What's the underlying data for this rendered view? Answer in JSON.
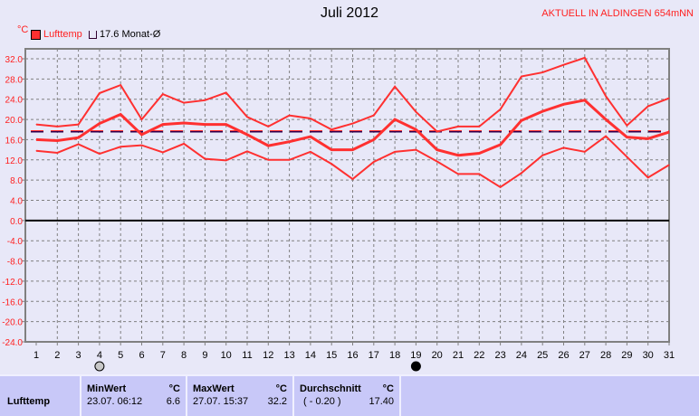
{
  "chart_data": {
    "type": "line",
    "title": "Juli 2012",
    "ylabel": "°C",
    "ylim": [
      -24,
      32
    ],
    "yticks": [
      "32.0",
      "28.0",
      "24.0",
      "20.0",
      "16.0",
      "12.0",
      "8.0",
      "4.0",
      "0.0",
      "-4.0",
      "-8.0",
      "-12.0",
      "-16.0",
      "-20.0",
      "-24.0"
    ],
    "x": [
      1,
      2,
      3,
      4,
      5,
      6,
      7,
      8,
      9,
      10,
      11,
      12,
      13,
      14,
      15,
      16,
      17,
      18,
      19,
      20,
      21,
      22,
      23,
      24,
      25,
      26,
      27,
      28,
      29,
      30,
      31
    ],
    "grid": true,
    "series": [
      {
        "name": "Lufttemp",
        "color": "#ff3030",
        "values": [
          16.0,
          15.8,
          16.4,
          19.2,
          21.0,
          17.0,
          19.0,
          19.3,
          19.0,
          19.0,
          17.0,
          14.8,
          15.6,
          16.6,
          14.0,
          14.0,
          16.0,
          20.0,
          18.0,
          14.0,
          12.9,
          13.3,
          15.0,
          19.8,
          21.6,
          23.0,
          23.8,
          20.0,
          16.5,
          16.2,
          17.5
        ]
      },
      {
        "color": "#ff3030",
        "values": [
          19.0,
          18.6,
          19.0,
          25.2,
          26.8,
          20.0,
          25.0,
          23.3,
          23.8,
          25.3,
          20.5,
          18.6,
          20.8,
          20.2,
          18.0,
          19.2,
          20.8,
          26.5,
          21.5,
          17.6,
          18.6,
          18.6,
          22.0,
          28.5,
          29.3,
          30.8,
          32.2,
          24.6,
          18.8,
          22.6,
          24.2
        ]
      },
      {
        "color": "#ff3030",
        "values": [
          13.8,
          13.4,
          15.1,
          13.2,
          14.6,
          14.9,
          13.5,
          15.2,
          12.2,
          11.9,
          13.7,
          12.0,
          12.0,
          13.6,
          11.2,
          8.2,
          11.6,
          13.6,
          14.0,
          11.7,
          9.2,
          9.2,
          6.6,
          9.4,
          12.9,
          14.4,
          13.6,
          16.7,
          12.6,
          8.5,
          11.0
        ]
      }
    ],
    "reference": {
      "label": "17.6 Monat-Ø",
      "value": 17.6
    },
    "moon": [
      {
        "day": 4,
        "phase": "full-moon"
      },
      {
        "day": 19,
        "phase": "new-moon"
      }
    ]
  },
  "header": {
    "current": "AKTUELL IN ALDINGEN 654mNN",
    "unit": "°C",
    "legend_series": "Lufttemp",
    "legend_ref": "17.6 Monat-Ø"
  },
  "table": {
    "row_label": "Lufttemp",
    "min": {
      "header": "MinWert",
      "unit": "°C",
      "time": "23.07.  06:12",
      "value": "6.6"
    },
    "max": {
      "header": "MaxWert",
      "unit": "°C",
      "time": "27.07.  15:37",
      "value": "32.2"
    },
    "avg": {
      "header": "Durchschnitt",
      "unit": "°C",
      "diff": "( - 0.20 )",
      "value": "17.40"
    }
  }
}
